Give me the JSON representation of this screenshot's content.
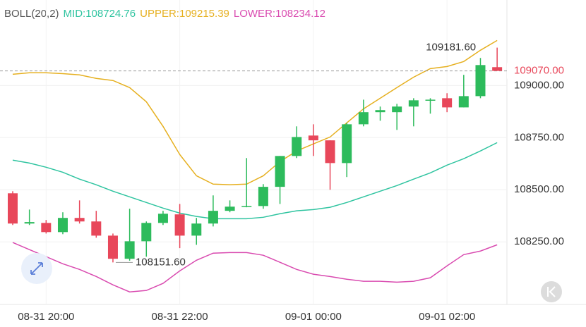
{
  "chart_data": {
    "type": "candlestick",
    "indicator_header": [
      {
        "text": "BOLL(20,2)",
        "color": "#555555"
      },
      {
        "text": "MID:108724.76",
        "color": "#2fc4a0"
      },
      {
        "text": "UPPER:109215.39",
        "color": "#e6b020"
      },
      {
        "text": "LOWER:108234.12",
        "color": "#d94bb0"
      }
    ],
    "categories": [
      null,
      null,
      "08-31 20:00",
      null,
      null,
      null,
      null,
      null,
      null,
      null,
      "08-31 22:00",
      null,
      null,
      null,
      null,
      null,
      null,
      null,
      "09-01 00:00",
      null,
      null,
      null,
      null,
      null,
      null,
      null,
      "09-01 02:00",
      null,
      null,
      null
    ],
    "open": [
      108483,
      108338,
      108341,
      108297,
      108365,
      108348,
      108280,
      108169,
      108253,
      108341,
      108382,
      108280,
      108338,
      108399,
      108419,
      108422,
      108514,
      108662,
      108760,
      108737,
      108628,
      108814,
      108872,
      108872,
      108899,
      108929,
      108939,
      108895,
      108949,
      109088
    ],
    "high": [
      108493,
      108405,
      108355,
      108392,
      108449,
      108399,
      108290,
      108409,
      108348,
      108399,
      108432,
      108365,
      108473,
      108449,
      108652,
      108527,
      108662,
      108804,
      108814,
      108737,
      108821,
      108932,
      108899,
      108912,
      108939,
      108939,
      108963,
      109051,
      109132,
      109181.6
    ],
    "low": [
      108331,
      108331,
      108290,
      108287,
      108338,
      108270,
      108151.6,
      108160,
      108179,
      108331,
      108220,
      108236,
      108324,
      108392,
      108416,
      108409,
      108432,
      108652,
      108662,
      108500,
      108561,
      108804,
      108831,
      108787,
      108804,
      108865,
      108872,
      108895,
      108939,
      109070
    ],
    "close": [
      108338,
      108345,
      108297,
      108365,
      108348,
      108280,
      108169,
      108253,
      108341,
      108385,
      108280,
      108338,
      108399,
      108419,
      108422,
      108514,
      108662,
      108753,
      108737,
      108628,
      108814,
      108872,
      108882,
      108899,
      108929,
      108932,
      108895,
      108949,
      109098,
      109070
    ],
    "up_color": "#2dbb5c",
    "down_color": "#e8475a",
    "series": [
      {
        "color": "#2fc4a0",
        "values": [
          108642,
          108628,
          108608,
          108584,
          108551,
          108524,
          108493,
          108466,
          108439,
          108412,
          108388,
          108372,
          108361,
          108361,
          108361,
          108368,
          108385,
          108399,
          108405,
          108416,
          108439,
          108466,
          108493,
          108520,
          108551,
          108581,
          108618,
          108649,
          108686,
          108726
        ]
      },
      {
        "color": "#e6b020",
        "values": [
          109054,
          109061,
          109061,
          109057,
          109051,
          109034,
          109024,
          108990,
          108922,
          108804,
          108669,
          108567,
          108527,
          108524,
          108527,
          108567,
          108635,
          108686,
          108720,
          108753,
          108821,
          108888,
          108939,
          108990,
          109040,
          109081,
          109091,
          109115,
          109169,
          109216
        ]
      },
      {
        "color": "#d94bb0",
        "values": [
          108247,
          108213,
          108179,
          108145,
          108118,
          108084,
          108044,
          108010,
          108017,
          108051,
          108111,
          108162,
          108196,
          108199,
          108199,
          108186,
          108152,
          108118,
          108095,
          108084,
          108071,
          108061,
          108061,
          108057,
          108061,
          108078,
          108135,
          108189,
          108206,
          108236
        ]
      }
    ],
    "ylim": [
      107950,
      109410
    ],
    "yticks": [
      {
        "value": 109000,
        "label": "109000.00"
      },
      {
        "value": 108750,
        "label": "108750.00"
      },
      {
        "value": 108500,
        "label": "108500.00"
      },
      {
        "value": 108250,
        "label": "108250.00"
      }
    ],
    "last_price": {
      "value": 109070,
      "label": "109070.00"
    },
    "high_label": {
      "value": 109181.6,
      "label": "109181.60"
    },
    "low_label": {
      "value": 108151.6,
      "label": "108151.60"
    },
    "grid": true
  }
}
